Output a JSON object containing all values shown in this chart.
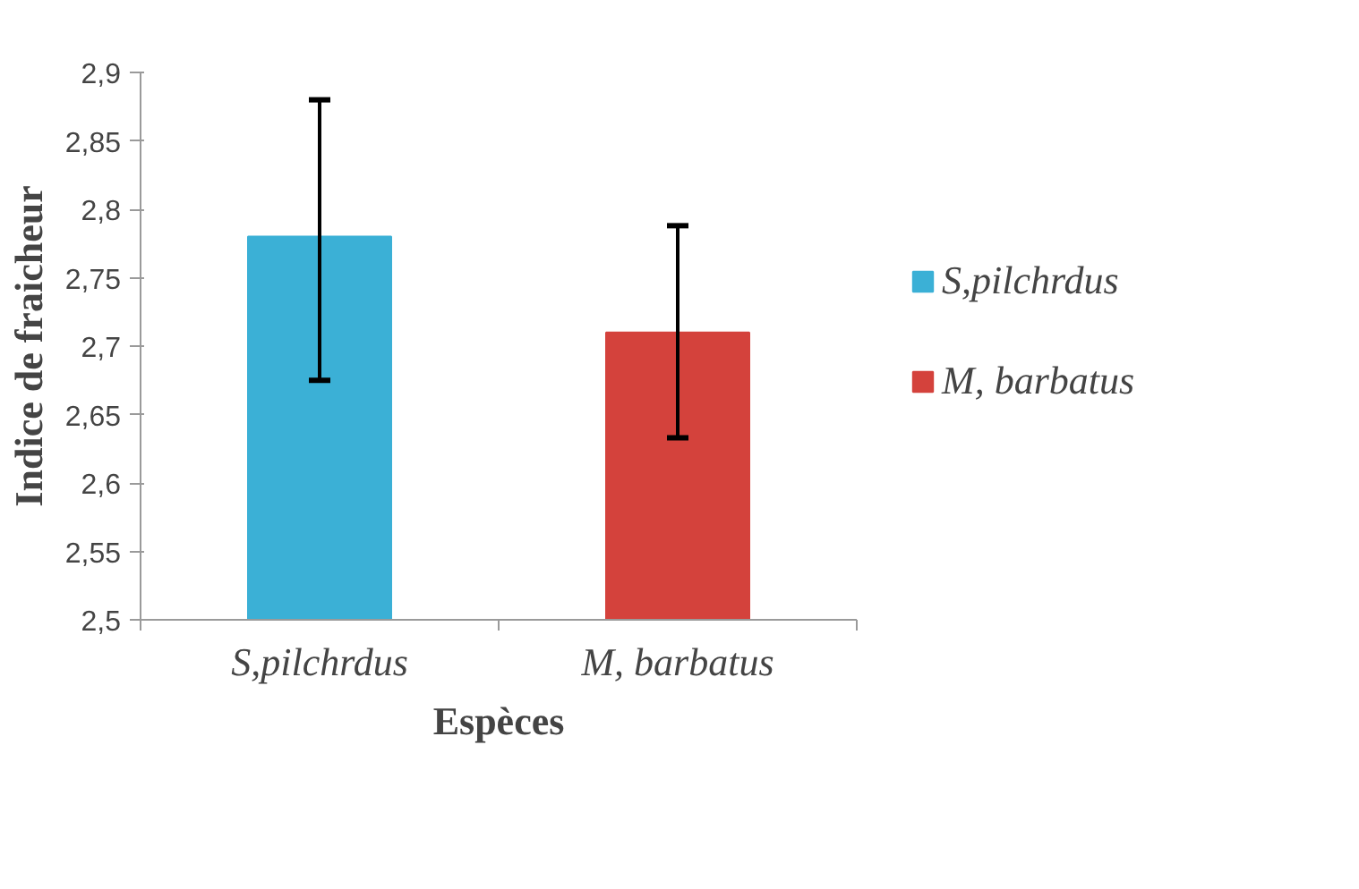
{
  "chart_data": {
    "type": "bar",
    "xlabel": "Espèces",
    "ylabel": "Indice de fraicheur",
    "stacked": true,
    "categories": [
      "S,pilchrdus",
      "M, barbatus"
    ],
    "series": [
      {
        "name": "S,pilchrdus",
        "color": "#3bb0d6",
        "values": [
          2.78,
          null
        ],
        "errors": [
          [
            2.675,
            2.88
          ],
          null
        ]
      },
      {
        "name": "M, barbatus",
        "color": "#d4423c",
        "values": [
          null,
          2.71
        ],
        "errors": [
          null,
          [
            2.633,
            2.788
          ]
        ]
      }
    ],
    "ylim": [
      2.5,
      2.9
    ],
    "yticks": [
      {
        "value": 2.5,
        "label": "2,5"
      },
      {
        "value": 2.55,
        "label": "2,55"
      },
      {
        "value": 2.6,
        "label": "2,6"
      },
      {
        "value": 2.65,
        "label": "2,65"
      },
      {
        "value": 2.7,
        "label": "2,7"
      },
      {
        "value": 2.75,
        "label": "2,75"
      },
      {
        "value": 2.8,
        "label": "2,8"
      },
      {
        "value": 2.85,
        "label": "2,85"
      },
      {
        "value": 2.9,
        "label": "2,9"
      }
    ],
    "grid": false,
    "legend": "right"
  }
}
